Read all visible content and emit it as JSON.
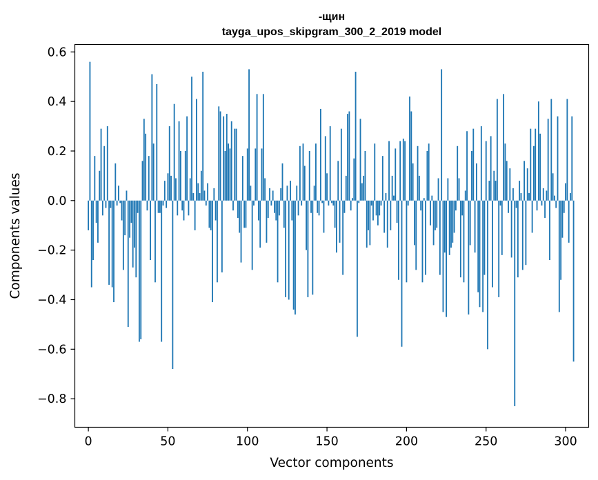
{
  "chart_data": {
    "type": "bar",
    "title": "-щин",
    "subtitle": "tayga_upos_skipgram_300_2_2019 model",
    "xlabel": "Vector components",
    "ylabel": "Components values",
    "xlim": [
      -8.5,
      314.5
    ],
    "ylim": [
      -0.915,
      0.63
    ],
    "x_ticks": [
      0,
      50,
      100,
      150,
      200,
      250,
      300
    ],
    "x_tick_labels": [
      "0",
      "50",
      "100",
      "150",
      "200",
      "250",
      "300"
    ],
    "y_ticks": [
      -0.8,
      -0.6,
      -0.4,
      -0.2,
      0.0,
      0.2,
      0.4,
      0.6
    ],
    "y_tick_labels": [
      "−0.8",
      "−0.6",
      "−0.4",
      "−0.2",
      "0.0",
      "0.2",
      "0.4",
      "0.6"
    ],
    "bar_color": "#1f77b4",
    "grid": false,
    "values": [
      -0.12,
      0.56,
      -0.35,
      -0.24,
      0.18,
      -0.09,
      -0.17,
      0.12,
      0.29,
      -0.06,
      0.22,
      -0.03,
      0.3,
      -0.34,
      -0.03,
      -0.35,
      -0.41,
      0.15,
      -0.02,
      0.06,
      -0.01,
      -0.08,
      -0.28,
      -0.14,
      0.04,
      -0.51,
      -0.15,
      -0.09,
      -0.27,
      -0.19,
      -0.31,
      -0.05,
      -0.57,
      -0.56,
      0.16,
      0.33,
      0.27,
      -0.04,
      0.18,
      -0.24,
      0.51,
      0.23,
      -0.33,
      0.47,
      -0.05,
      -0.05,
      -0.57,
      -0.02,
      0.08,
      -0.03,
      0.11,
      0.3,
      0.1,
      -0.68,
      0.39,
      0.09,
      -0.06,
      0.32,
      0.2,
      -0.04,
      -0.08,
      0.2,
      0.34,
      -0.06,
      0.09,
      0.5,
      0.03,
      -0.12,
      0.41,
      0.07,
      0.03,
      0.12,
      0.52,
      0.04,
      -0.02,
      0.07,
      -0.11,
      -0.12,
      -0.41,
      0.05,
      -0.08,
      -0.33,
      0.38,
      0.36,
      -0.29,
      0.34,
      0.2,
      0.35,
      0.23,
      0.21,
      0.32,
      -0.04,
      0.29,
      0.29,
      -0.07,
      -0.13,
      -0.25,
      0.18,
      -0.11,
      -0.11,
      0.21,
      0.53,
      0.06,
      -0.28,
      -0.02,
      0.21,
      0.43,
      -0.08,
      -0.19,
      0.21,
      0.43,
      0.09,
      -0.17,
      -0.07,
      0.05,
      -0.02,
      0.04,
      -0.05,
      -0.08,
      -0.33,
      -0.06,
      0.05,
      0.15,
      -0.11,
      -0.39,
      0.06,
      -0.4,
      0.08,
      -0.08,
      -0.44,
      -0.46,
      0.06,
      -0.06,
      0.22,
      -0.02,
      0.23,
      0.14,
      -0.2,
      -0.39,
      0.2,
      -0.05,
      -0.38,
      0.06,
      0.23,
      -0.05,
      -0.06,
      0.37,
      -0.01,
      -0.13,
      0.26,
      0.11,
      -0.02,
      0.3,
      -0.01,
      -0.02,
      -0.11,
      -0.21,
      0.16,
      -0.17,
      0.29,
      -0.3,
      -0.05,
      0.1,
      0.35,
      0.36,
      -0.04,
      0.01,
      0.17,
      0.52,
      -0.55,
      -0.01,
      0.33,
      0.07,
      0.1,
      0.2,
      -0.19,
      -0.12,
      -0.18,
      -0.02,
      -0.08,
      0.23,
      -0.06,
      -0.1,
      -0.06,
      -0.02,
      0.18,
      -0.13,
      0.03,
      -0.19,
      0.24,
      -0.12,
      0.1,
      0.02,
      0.21,
      -0.09,
      -0.32,
      0.24,
      -0.59,
      0.25,
      0.24,
      -0.33,
      -0.02,
      0.42,
      0.36,
      0.15,
      -0.18,
      -0.28,
      0.22,
      0.1,
      -0.04,
      -0.33,
      0.01,
      -0.3,
      0.2,
      0.23,
      -0.1,
      0.02,
      -0.18,
      -0.12,
      -0.11,
      0.09,
      -0.3,
      0.53,
      -0.45,
      -0.21,
      -0.47,
      0.09,
      -0.22,
      -0.19,
      -0.17,
      -0.13,
      -0.04,
      0.22,
      0.09,
      -0.31,
      -0.06,
      -0.33,
      0.04,
      0.28,
      -0.46,
      -0.18,
      0.2,
      0.29,
      -0.21,
      0.15,
      -0.37,
      -0.43,
      0.3,
      -0.45,
      -0.3,
      0.24,
      -0.6,
      0.08,
      0.26,
      -0.35,
      0.12,
      0.08,
      0.41,
      -0.39,
      -0.02,
      -0.22,
      0.43,
      0.23,
      0.16,
      -0.05,
      0.13,
      -0.23,
      0.05,
      -0.83,
      -0.03,
      -0.31,
      0.08,
      0.03,
      -0.28,
      0.16,
      -0.26,
      0.13,
      0.03,
      0.29,
      -0.13,
      0.22,
      0.29,
      -0.04,
      0.4,
      0.27,
      -0.02,
      0.05,
      -0.07,
      0.04,
      0.33,
      -0.24,
      0.41,
      0.11,
      0.02,
      -0.03,
      0.34,
      -0.45,
      -0.32,
      -0.15,
      -0.05,
      0.07,
      0.41,
      -0.17,
      0.03,
      0.34,
      -0.65
    ]
  }
}
